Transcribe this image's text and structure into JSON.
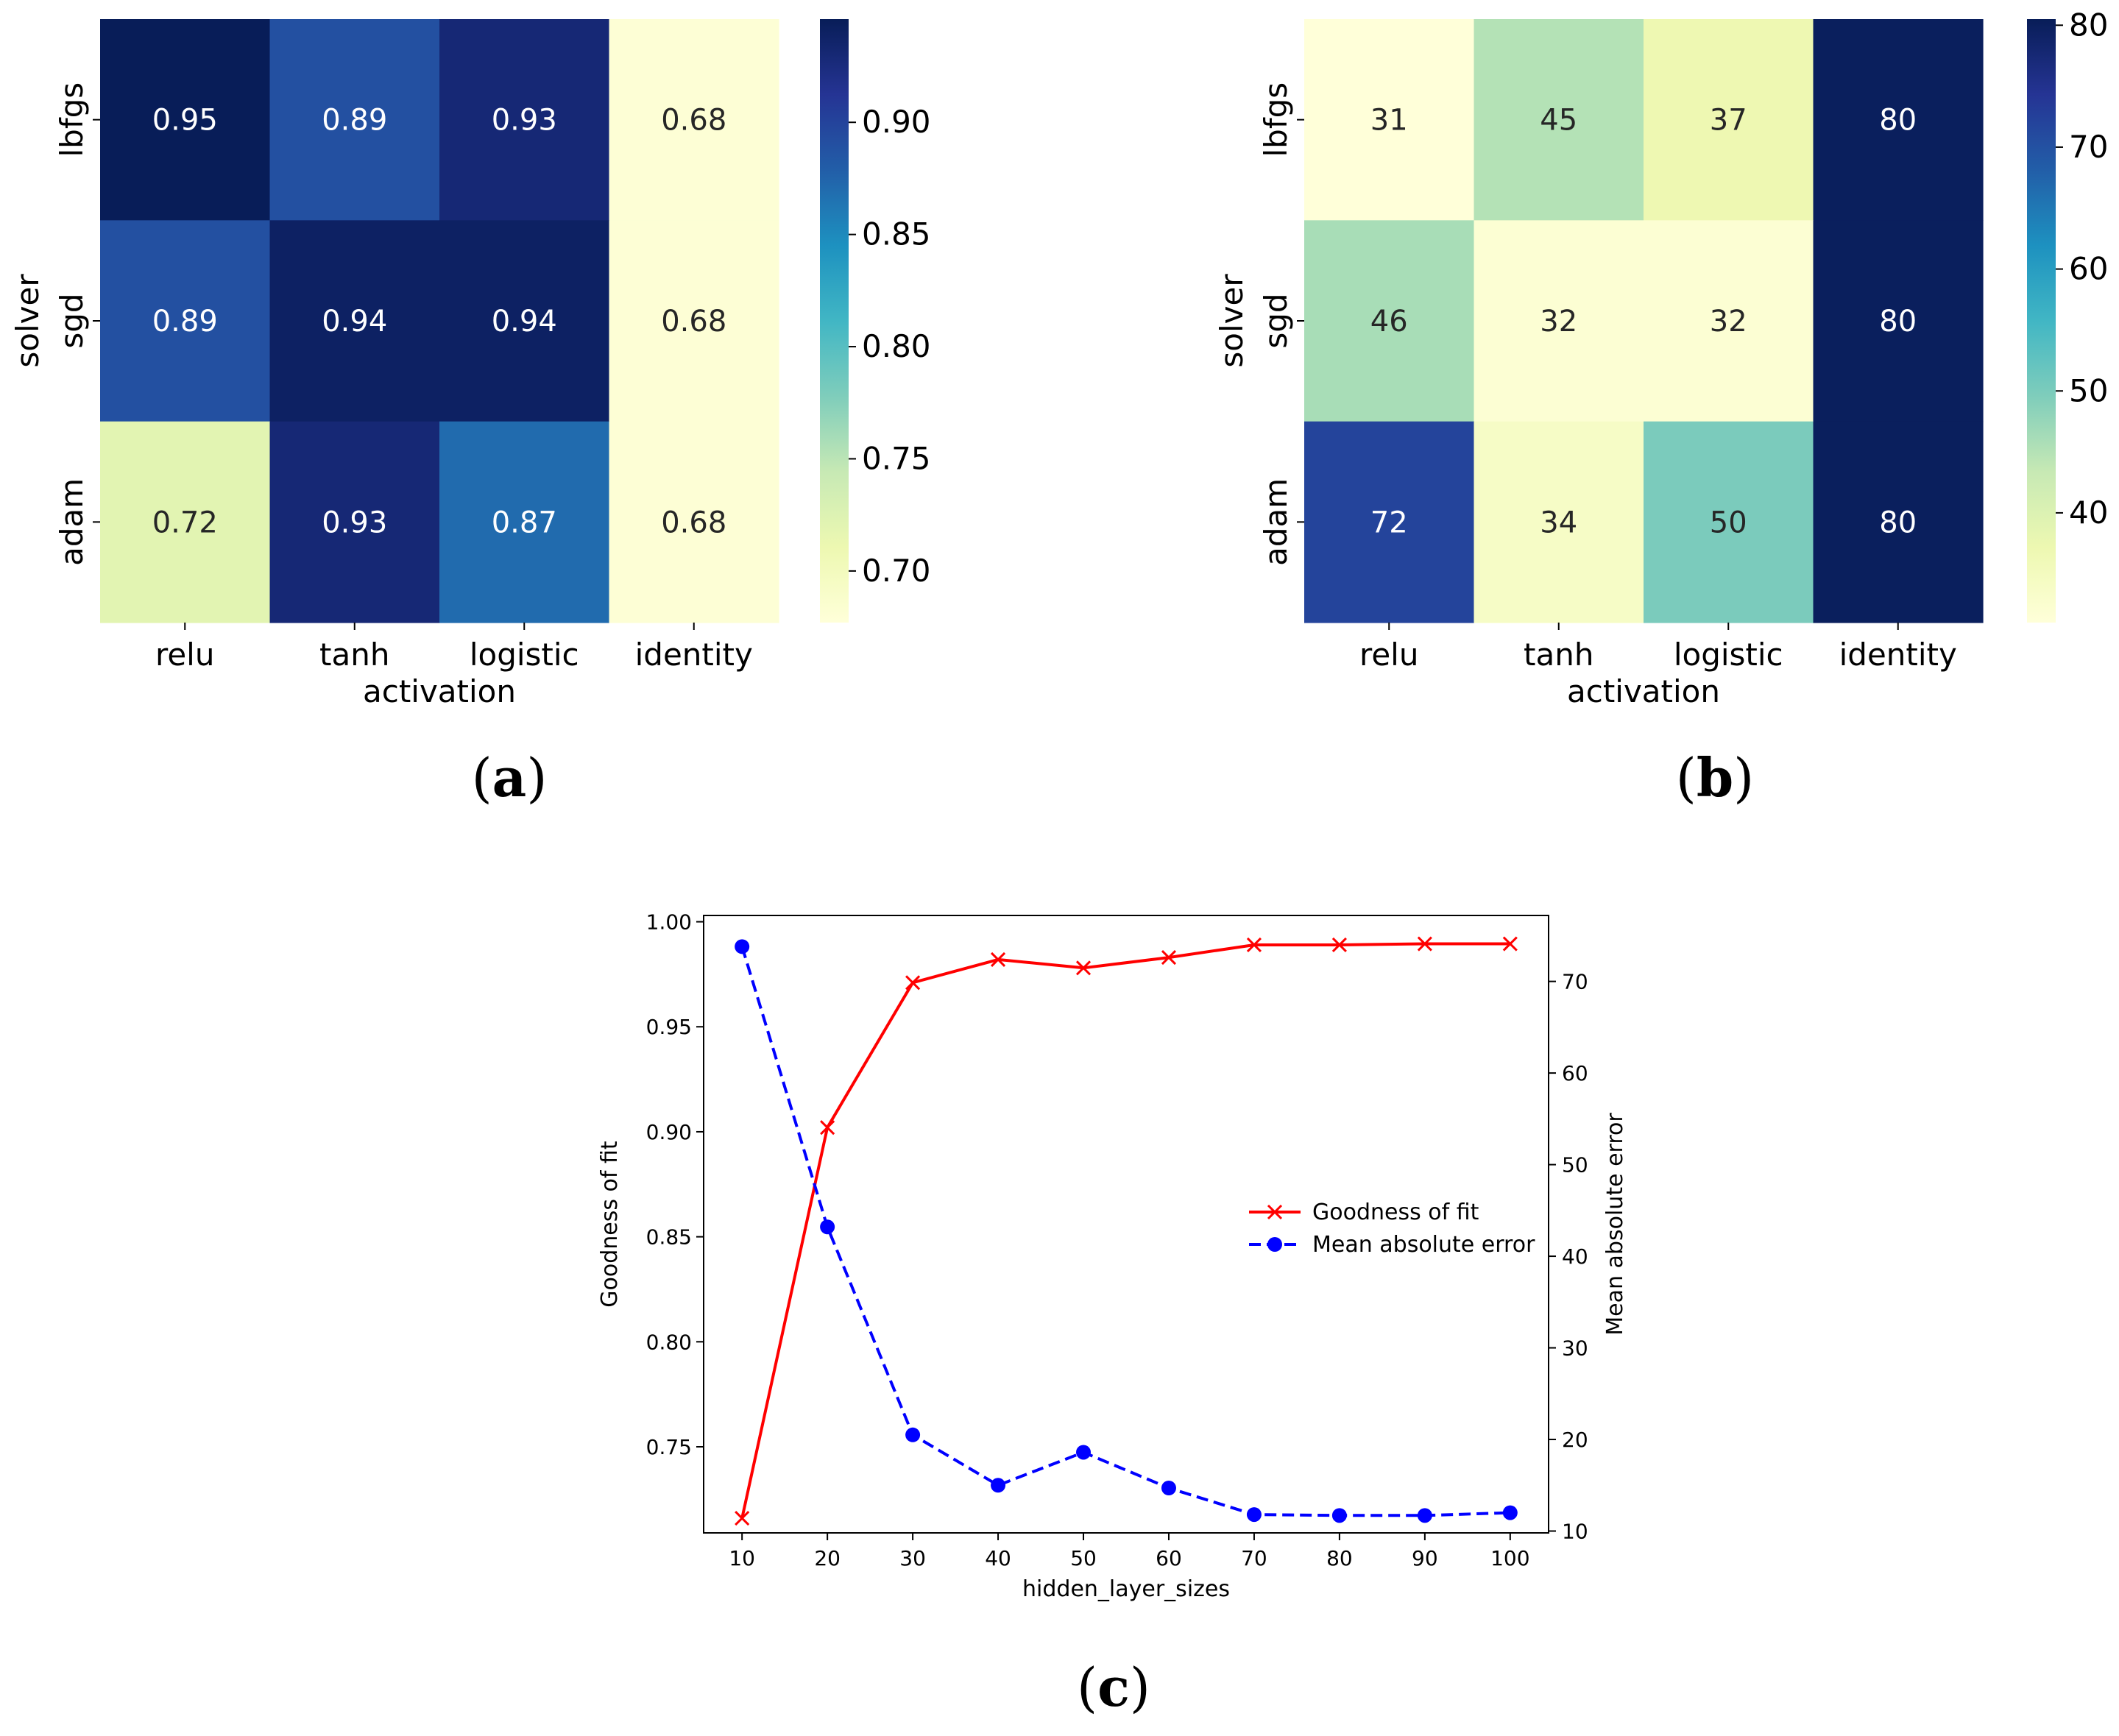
{
  "panels": {
    "a": {
      "caption_open": "(",
      "caption_letter": "a",
      "caption_close": ")"
    },
    "b": {
      "caption_open": "(",
      "caption_letter": "b",
      "caption_close": ")"
    },
    "c": {
      "caption_open": "(",
      "caption_letter": "c",
      "caption_close": ")"
    }
  },
  "chart_data": [
    {
      "type": "heatmap",
      "panel": "a",
      "xlabel": "activation",
      "ylabel": "solver",
      "x_categories": [
        "relu",
        "tanh",
        "logistic",
        "identity"
      ],
      "y_categories": [
        "lbfgs",
        "sgd",
        "adam"
      ],
      "values": [
        [
          0.95,
          0.89,
          0.93,
          0.68
        ],
        [
          0.89,
          0.94,
          0.94,
          0.68
        ],
        [
          0.72,
          0.93,
          0.87,
          0.68
        ]
      ],
      "labels": [
        [
          "0.95",
          "0.89",
          "0.93",
          "0.68"
        ],
        [
          "0.89",
          "0.94",
          "0.94",
          "0.68"
        ],
        [
          "0.72",
          "0.93",
          "0.87",
          "0.68"
        ]
      ],
      "colormap": "YlGnBu",
      "colorbar_range": [
        0.677,
        0.946
      ],
      "colorbar_ticks": [
        0.7,
        0.75,
        0.8,
        0.85,
        0.9
      ],
      "colorbar_tick_labels": [
        "0.70",
        "0.75",
        "0.80",
        "0.85",
        "0.90"
      ]
    },
    {
      "type": "heatmap",
      "panel": "b",
      "xlabel": "activation",
      "ylabel": "solver",
      "x_categories": [
        "relu",
        "tanh",
        "logistic",
        "identity"
      ],
      "y_categories": [
        "lbfgs",
        "sgd",
        "adam"
      ],
      "values": [
        [
          31,
          45,
          37,
          80
        ],
        [
          46,
          32,
          32,
          80
        ],
        [
          72,
          34,
          50,
          80
        ]
      ],
      "labels": [
        [
          "31",
          "45",
          "37",
          "80"
        ],
        [
          "46",
          "32",
          "32",
          "80"
        ],
        [
          "72",
          "34",
          "50",
          "80"
        ]
      ],
      "colormap": "YlGnBu",
      "colorbar_range": [
        31,
        80.5
      ],
      "colorbar_ticks": [
        40,
        50,
        60,
        70,
        80
      ],
      "colorbar_tick_labels": [
        "40",
        "50",
        "60",
        "70",
        "80"
      ]
    },
    {
      "type": "line",
      "panel": "c",
      "xlabel": "hidden_layer_sizes",
      "ylabel": "Goodness of fit",
      "ylabel_right": "Mean absolute error",
      "x": [
        10,
        20,
        30,
        40,
        50,
        60,
        70,
        80,
        90,
        100
      ],
      "xlim": [
        5.5,
        104.5
      ],
      "x_ticks": [
        "10",
        "20",
        "30",
        "40",
        "50",
        "60",
        "70",
        "80",
        "90",
        "100"
      ],
      "ylim": [
        0.709,
        1.003
      ],
      "y_ticks": [
        "0.75",
        "0.80",
        "0.85",
        "0.90",
        "0.95",
        "1.00"
      ],
      "ylim_right": [
        9.8,
        77.2
      ],
      "y_ticks_right": [
        "10",
        "20",
        "30",
        "40",
        "50",
        "60",
        "70"
      ],
      "legend_position": "center-right",
      "series": [
        {
          "name": "Goodness of fit",
          "axis": "left",
          "color": "#ff0000",
          "linestyle": "solid",
          "marker": "x",
          "values": [
            0.716,
            0.902,
            0.971,
            0.982,
            0.978,
            0.983,
            0.989,
            0.989,
            0.9895,
            0.9895
          ]
        },
        {
          "name": "Mean absolute error",
          "axis": "right",
          "color": "#0000ff",
          "linestyle": "dashed",
          "marker": "o",
          "values": [
            73.8,
            43.2,
            20.5,
            15.0,
            18.6,
            14.7,
            11.8,
            11.7,
            11.7,
            12.0
          ]
        }
      ]
    }
  ]
}
